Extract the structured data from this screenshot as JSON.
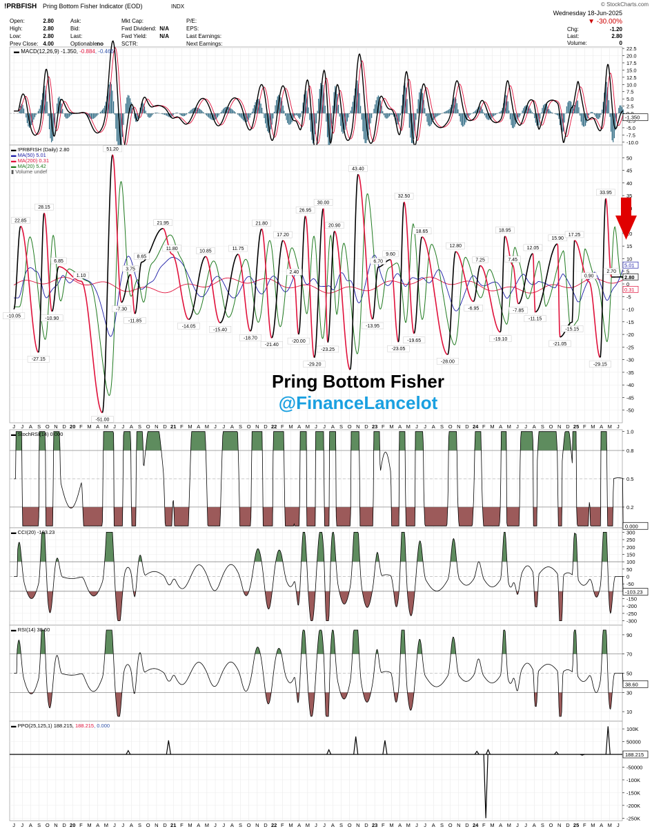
{
  "header": {
    "symbol": "!PRBFISH",
    "name": "Pring Bottom Fisher Indicator (EOD)",
    "exchange": "INDX",
    "watermark": "© StockCharts.com",
    "date": "Wednesday  18-Jun-2025",
    "change_pct": "▼ -30.00%",
    "row1": [
      "Open:",
      "2.80",
      "Ask:",
      "",
      "Mkt Cap:",
      "",
      "P/E:",
      "",
      "",
      ""
    ],
    "fields": [
      {
        "label": "Open:",
        "value": "2.80"
      },
      {
        "label": "High:",
        "value": "2.80"
      },
      {
        "label": "Low:",
        "value": "2.80"
      },
      {
        "label": "Prev Close:",
        "value": "4.00"
      }
    ],
    "fields2": [
      {
        "label": "Ask:",
        "value": ""
      },
      {
        "label": "Bid:",
        "value": ""
      },
      {
        "label": "Last:",
        "value": ""
      },
      {
        "label": "Optionable:",
        "value": "no"
      }
    ],
    "fields3": [
      {
        "label": "Mkt Cap:",
        "value": ""
      },
      {
        "label": "Fwd Dividend:",
        "value": "N/A"
      },
      {
        "label": "Fwd Yield:",
        "value": "N/A"
      },
      {
        "label": "SCTR:",
        "value": ""
      }
    ],
    "fields4": [
      "P/E:",
      "EPS:",
      "Last Earnings:",
      "Next Earnings:"
    ],
    "fields5": [
      {
        "label": "Chg:",
        "value": "-1.20"
      },
      {
        "label": "Last:",
        "value": "2.80"
      },
      {
        "label": "Volume:",
        "value": "0"
      }
    ]
  },
  "annotation": {
    "title": "Pring Bottom Fisher",
    "handle": "@FinanceLancelot",
    "arrow_color": "#e00000"
  },
  "colors": {
    "price": "#000000",
    "ma50": "#1a1aa6",
    "ma200": "#e0103a",
    "ma20": "#1f7a1f",
    "green_fill": "#5e8c5e",
    "red_fill": "#9c5a5a",
    "macd_hist": "#1f5f7a",
    "signal": "#e0103a"
  },
  "chart_data": {
    "type": "line",
    "x_axis": {
      "labels": [
        "J",
        "J",
        "A",
        "S",
        "O",
        "N",
        "D",
        "20",
        "F",
        "M",
        "A",
        "M",
        "J",
        "J",
        "A",
        "S",
        "O",
        "N",
        "D",
        "21",
        "F",
        "M",
        "A",
        "M",
        "J",
        "J",
        "A",
        "S",
        "O",
        "N",
        "D",
        "22",
        "F",
        "M",
        "A",
        "M",
        "J",
        "J",
        "A",
        "S",
        "O",
        "N",
        "D",
        "23",
        "F",
        "M",
        "A",
        "M",
        "J",
        "J",
        "A",
        "S",
        "O",
        "N",
        "D",
        "24",
        "F",
        "M",
        "A",
        "M",
        "J",
        "J",
        "A",
        "S",
        "O",
        "N",
        "D",
        "25",
        "F",
        "M",
        "A",
        "M",
        "J"
      ],
      "months_count": 73
    },
    "panels": [
      {
        "id": "macd",
        "legend": "MACD(12,26,9) -1.350, ",
        "legend_b": "-0.884",
        "legend_c": ", -0.466",
        "ylim": [
          -11,
          23
        ],
        "yticks": [
          "22.5",
          "20.0",
          "17.5",
          "15.0",
          "12.5",
          "10.0",
          "7.5",
          "5.0",
          "2.5",
          "0.0",
          "-2.5",
          "-5.0",
          "-7.5",
          "-10.0"
        ],
        "ytick_values": [
          22.5,
          20,
          17.5,
          15,
          12.5,
          10,
          7.5,
          5,
          2.5,
          0,
          -2.5,
          -5,
          -7.5,
          -10
        ],
        "last_label": "-1.350"
      },
      {
        "id": "price",
        "legend": [
          {
            "text": "!PRBFISH (Daily) 2.80",
            "color": "#000000"
          },
          {
            "text": "MA(50) 5.01",
            "color": "#1a1aa6"
          },
          {
            "text": "MA(200) 0.31",
            "color": "#e0103a"
          },
          {
            "text": "MA(20) 5.42",
            "color": "#1f7a1f"
          },
          {
            "text": "Volume undef",
            "color": "#555555"
          }
        ],
        "ylim": [
          -55,
          55
        ],
        "yticks": [
          "50",
          "45",
          "40",
          "35",
          "30",
          "25",
          "20",
          "15",
          "10",
          "5",
          "0",
          "-5",
          "-10",
          "-15",
          "-20",
          "-25",
          "-30",
          "-35",
          "-40",
          "-45",
          "-50"
        ],
        "ytick_values": [
          50,
          45,
          40,
          35,
          30,
          25,
          20,
          15,
          10,
          5,
          0,
          -5,
          -10,
          -15,
          -20,
          -25,
          -30,
          -35,
          -40,
          -45,
          -50
        ],
        "right_labels": [
          {
            "text": "5.01",
            "value": 5.01,
            "color": "#1a1aa6"
          },
          {
            "text": "2.80",
            "value": 2.8,
            "color": "#000000"
          },
          {
            "text": "0.31",
            "value": 0.31,
            "color": "#e0103a"
          }
        ],
        "peaks": [
          {
            "m": 0.6,
            "v": 22.85,
            "label": "22.85"
          },
          {
            "m": 2.7,
            "v": 28.15,
            "label": "28.15"
          },
          {
            "m": 4.0,
            "v": 6.85,
            "label": "6.85"
          },
          {
            "m": 6.0,
            "v": 1.1,
            "label": "1.10"
          },
          {
            "m": 8.8,
            "v": 51.2,
            "label": "51.20"
          },
          {
            "m": 10.4,
            "v": 3.75,
            "label": "3.75"
          },
          {
            "m": 11.4,
            "v": 8.65,
            "label": "8.65"
          },
          {
            "m": 13.3,
            "v": 21.95,
            "label": "21.95"
          },
          {
            "m": 14.1,
            "v": 11.8,
            "label": "11.80"
          },
          {
            "m": 17.1,
            "v": 10.85,
            "label": "10.85"
          },
          {
            "m": 20.0,
            "v": 11.75,
            "label": "11.75"
          },
          {
            "m": 22.1,
            "v": 21.8,
            "label": "21.80"
          },
          {
            "m": 24.0,
            "v": 17.2,
            "label": "17.20"
          },
          {
            "m": 25.0,
            "v": 2.4,
            "label": "2.40"
          },
          {
            "m": 26.0,
            "v": 26.95,
            "label": "26.95"
          },
          {
            "m": 27.6,
            "v": 30.0,
            "label": "30.00"
          },
          {
            "m": 28.6,
            "v": 20.9,
            "label": "20.90"
          },
          {
            "m": 30.7,
            "v": 43.4,
            "label": "43.40"
          },
          {
            "m": 32.5,
            "v": 6.7,
            "label": "6.70"
          },
          {
            "m": 33.6,
            "v": 9.6,
            "label": "9.60"
          },
          {
            "m": 34.8,
            "v": 32.5,
            "label": "32.50"
          },
          {
            "m": 36.4,
            "v": 18.65,
            "label": "18.65"
          },
          {
            "m": 39.4,
            "v": 12.8,
            "label": "12.80"
          },
          {
            "m": 41.6,
            "v": 7.25,
            "label": "7.25"
          },
          {
            "m": 43.8,
            "v": 18.95,
            "label": "18.95"
          },
          {
            "m": 44.5,
            "v": 7.45,
            "label": "7.45"
          },
          {
            "m": 46.3,
            "v": 12.05,
            "label": "12.05"
          },
          {
            "m": 48.5,
            "v": 15.9,
            "label": "15.90"
          },
          {
            "m": 50.0,
            "v": 17.25,
            "label": "17.25"
          },
          {
            "m": 51.3,
            "v": 0.9,
            "label": "0.90"
          },
          {
            "m": 52.8,
            "v": 33.95,
            "label": "33.95"
          },
          {
            "m": 53.3,
            "v": 2.7,
            "label": "2.70"
          }
        ],
        "troughs": [
          {
            "m": 0.0,
            "v": -10.05,
            "label": "-10.05"
          },
          {
            "m": 2.2,
            "v": -27.15,
            "label": "-27.15"
          },
          {
            "m": 3.4,
            "v": -10.9,
            "label": "-10.90"
          },
          {
            "m": 7.9,
            "v": -51.0,
            "label": "-51.00"
          },
          {
            "m": 9.6,
            "v": -7.3,
            "label": "-7.30"
          },
          {
            "m": 10.8,
            "v": -11.85,
            "label": "-11.85"
          },
          {
            "m": 15.6,
            "v": -14.05,
            "label": "-14.05"
          },
          {
            "m": 18.4,
            "v": -15.4,
            "label": "-15.40"
          },
          {
            "m": 21.1,
            "v": -18.7,
            "label": "-18.70"
          },
          {
            "m": 23.0,
            "v": -21.4,
            "label": "-21.40"
          },
          {
            "m": 25.4,
            "v": -20.0,
            "label": "-20.00"
          },
          {
            "m": 26.8,
            "v": -29.2,
            "label": "-29.20"
          },
          {
            "m": 28.0,
            "v": -23.25,
            "label": "-23.25"
          },
          {
            "m": 30.0,
            "v": -34.0,
            "label": ""
          },
          {
            "m": 32.0,
            "v": -13.95,
            "label": "-13.95"
          },
          {
            "m": 34.3,
            "v": -23.05,
            "label": "-23.05"
          },
          {
            "m": 35.7,
            "v": -19.65,
            "label": "-19.65"
          },
          {
            "m": 38.7,
            "v": -28.0,
            "label": "-28.00"
          },
          {
            "m": 41.0,
            "v": -6.95,
            "label": "-6.95"
          },
          {
            "m": 43.4,
            "v": -19.1,
            "label": "-19.10"
          },
          {
            "m": 45.0,
            "v": -7.85,
            "label": "-7.85"
          },
          {
            "m": 46.5,
            "v": -11.15,
            "label": "-11.15"
          },
          {
            "m": 48.7,
            "v": -21.05,
            "label": "-21.05"
          },
          {
            "m": 49.8,
            "v": -15.15,
            "label": "-15.15"
          },
          {
            "m": 52.3,
            "v": -29.15,
            "label": "-29.15"
          }
        ]
      },
      {
        "id": "stochrsi",
        "legend": "StochRSI(14) 0.000",
        "ylim": [
          -0.02,
          1.02
        ],
        "yticks": [
          "1.0",
          "0.8",
          "0.5",
          "0.2"
        ],
        "ytick_values": [
          1.0,
          0.8,
          0.5,
          0.2
        ],
        "last_label": "0.000"
      },
      {
        "id": "cci",
        "legend": "CCI(20) -103.23",
        "ylim": [
          -330,
          330
        ],
        "yticks": [
          "300",
          "250",
          "200",
          "150",
          "100",
          "50",
          "0",
          "-50",
          "-100",
          "-150",
          "-200",
          "-250",
          "-300"
        ],
        "ytick_values": [
          300,
          250,
          200,
          150,
          100,
          50,
          0,
          -50,
          -100,
          -150,
          -200,
          -250,
          -300
        ],
        "last_label": "-103.23"
      },
      {
        "id": "rsi",
        "legend": "RSI(14) 38.60",
        "ylim": [
          0,
          100
        ],
        "yticks": [
          "90",
          "70",
          "50",
          "30",
          "10"
        ],
        "ytick_values": [
          90,
          70,
          50,
          30,
          10
        ],
        "last_label": "38.60"
      },
      {
        "id": "ppo",
        "legend": "PPO(25,125,1) 188.215, ",
        "legend_b": "188.215",
        "legend_c": ", 0.000",
        "ylim": [
          -260000,
          130000
        ],
        "yticks": [
          "100K",
          "50000",
          "-50000",
          "-100K",
          "-150K",
          "-200K",
          "-250K"
        ],
        "ytick_values": [
          100000,
          50000,
          -50000,
          -100000,
          -150000,
          -200000,
          -250000
        ],
        "last_label": "188.215",
        "spikes": [
          {
            "m": 10.2,
            "v": 15000
          },
          {
            "m": 13.8,
            "v": 55000
          },
          {
            "m": 28.1,
            "v": 18000
          },
          {
            "m": 30.5,
            "v": 70000
          },
          {
            "m": 33.1,
            "v": 55000
          },
          {
            "m": 41.3,
            "v": 12000
          },
          {
            "m": 42.3,
            "v": 18000
          },
          {
            "m": 48.4,
            "v": 10000
          },
          {
            "m": 53.0,
            "v": 110000
          },
          {
            "m": 50.7,
            "v": -3000
          },
          {
            "m": 42.1,
            "v": -250000
          }
        ]
      }
    ]
  }
}
